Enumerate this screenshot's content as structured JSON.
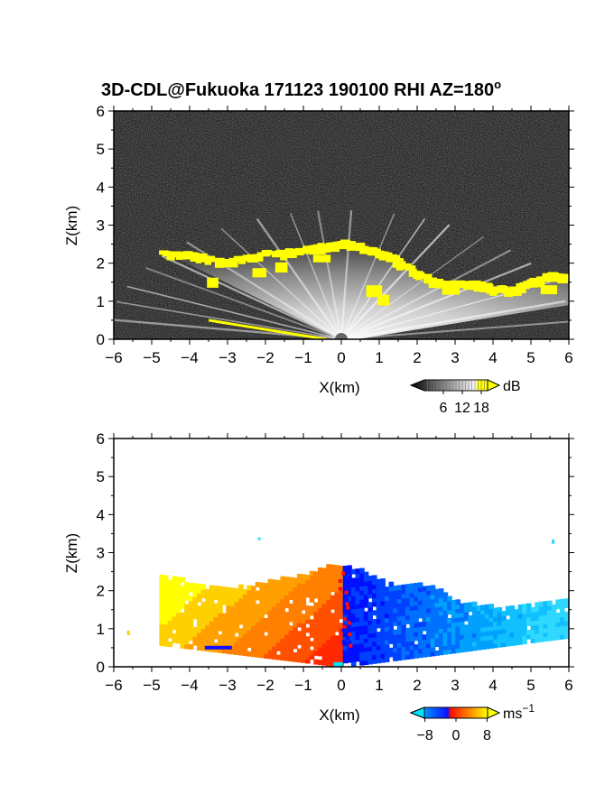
{
  "title": "3D-CDL@Fukuoka 171123 190100 RHI AZ=180°",
  "title_main": "3D-CDL@Fukuoka 171123 190100 RHI AZ=180",
  "title_degree": "o",
  "chart_data": [
    {
      "type": "heatmap",
      "panel": "top",
      "quantity": "signal-to-noise ratio",
      "xlabel": "X(km)",
      "ylabel": "Z(km)",
      "xlim": [
        -6,
        6
      ],
      "ylim": [
        0,
        6
      ],
      "x_ticks": [
        "−6",
        "−5",
        "−4",
        "−3",
        "−2",
        "−1",
        "0",
        "1",
        "2",
        "3",
        "4",
        "5",
        "6"
      ],
      "y_ticks": [
        "0",
        "1",
        "2",
        "3",
        "4",
        "5",
        "6"
      ],
      "colorbar": {
        "unit": "dB",
        "ticks": [
          "6",
          "12",
          "18"
        ],
        "tick_values": [
          6,
          12,
          18
        ],
        "range": [
          0,
          20
        ],
        "colors": [
          "#000000",
          "#ffffff",
          "#ffff00"
        ]
      },
      "echo_top_profile": {
        "x": [
          -4.7,
          -4.0,
          -3.0,
          -2.0,
          -1.0,
          -0.5,
          0.0,
          0.5,
          1.0,
          1.5,
          2.0,
          2.5,
          3.0,
          3.5,
          4.0,
          4.5,
          5.0,
          5.5,
          6.0
        ],
        "z": [
          2.3,
          2.3,
          2.1,
          2.3,
          2.4,
          2.5,
          2.6,
          2.5,
          2.35,
          2.1,
          1.8,
          1.55,
          1.5,
          1.5,
          1.4,
          1.35,
          1.55,
          1.75,
          1.7
        ]
      },
      "high_snr_color": "#ffff00"
    },
    {
      "type": "heatmap",
      "panel": "bottom",
      "quantity": "radial velocity",
      "xlabel": "X(km)",
      "ylabel": "Z(km)",
      "xlim": [
        -6,
        6
      ],
      "ylim": [
        0,
        6
      ],
      "x_ticks": [
        "−6",
        "−5",
        "−4",
        "−3",
        "−2",
        "−1",
        "0",
        "1",
        "2",
        "3",
        "4",
        "5",
        "6"
      ],
      "y_ticks": [
        "0",
        "1",
        "2",
        "3",
        "4",
        "5",
        "6"
      ],
      "colorbar": {
        "unit": "ms",
        "unit_exponent": "−1",
        "ticks": [
          "−8",
          "0",
          "8"
        ],
        "tick_values": [
          -8,
          0,
          8
        ],
        "range": [
          -10,
          10
        ],
        "colors": [
          "#00e5ff",
          "#0050ff",
          "#1020ff",
          "#ff1000",
          "#ff8000",
          "#ffff00"
        ]
      },
      "echo_top_profile": {
        "x": [
          -4.8,
          -4.0,
          -3.0,
          -2.0,
          -1.0,
          -0.5,
          0.0,
          0.5,
          1.0,
          1.5,
          2.0,
          2.5,
          3.0,
          3.5,
          4.0,
          4.5,
          5.0,
          5.5,
          6.0
        ],
        "z": [
          2.35,
          2.2,
          2.0,
          2.2,
          2.4,
          2.6,
          2.65,
          2.5,
          2.25,
          2.05,
          2.15,
          2.0,
          1.7,
          1.6,
          1.55,
          1.5,
          1.6,
          1.7,
          1.7
        ]
      },
      "velocity_sign": {
        "x_lt_0": "positive (warm colors)",
        "x_gt_0": "negative (blue colors)"
      }
    }
  ]
}
